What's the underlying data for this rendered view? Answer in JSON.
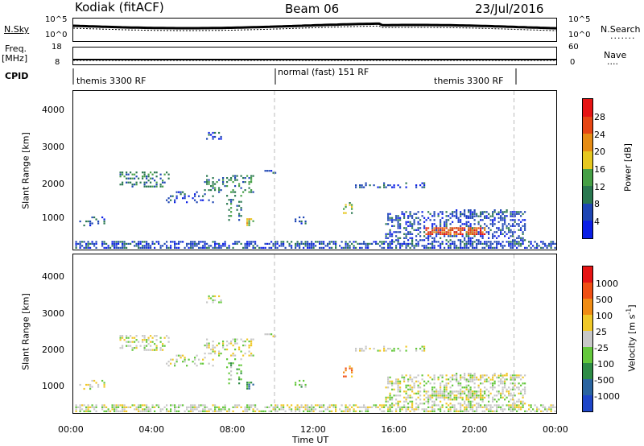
{
  "header": {
    "radar": "Kodiak (fitACF)",
    "beam": "Beam 06",
    "date": "23/Jul/2016"
  },
  "top_panels": {
    "nsky_label": "N.Sky",
    "nsky_ticks": [
      "10^5",
      "10^0"
    ],
    "nsearch_label": "N.Search",
    "nsearch_ticks": [
      "10^5",
      "10^0"
    ],
    "freq_label": "Freq.",
    "freq_unit": "[MHz]",
    "freq_ticks": [
      "18",
      "8"
    ],
    "nave_label": "Nave",
    "nave_ticks": [
      "60",
      "0"
    ],
    "cpid_label": "CPID",
    "cpid_segments": [
      {
        "label": "themis 3300 RF"
      },
      {
        "label": "normal (fast) 151 RF"
      },
      {
        "label": "themis 3300 RF"
      }
    ]
  },
  "chart_data": [
    {
      "type": "heatmap",
      "name": "power",
      "ylabel": "Slant Range [km]",
      "xlabel": "",
      "y_ticks": [
        "1000",
        "2000",
        "3000",
        "4000"
      ],
      "ylim": [
        180,
        4590
      ],
      "xlim": [
        0,
        24
      ],
      "colorbar": {
        "label": "Power [dB]",
        "ticks": [
          "4",
          "8",
          "12",
          "16",
          "20",
          "24",
          "28"
        ],
        "colors": [
          "#0a1ee6",
          "#1e46b4",
          "#2a7850",
          "#46a046",
          "#e6c820",
          "#e68c14",
          "#e64614",
          "#e61414"
        ]
      }
    },
    {
      "type": "heatmap",
      "name": "velocity",
      "ylabel": "Slant Range [km]",
      "xlabel": "Time UT",
      "y_ticks": [
        "1000",
        "2000",
        "3000",
        "4000"
      ],
      "x_ticks": [
        "00:00",
        "04:00",
        "08:00",
        "12:00",
        "16:00",
        "20:00",
        "00:00"
      ],
      "ylim": [
        180,
        4590
      ],
      "xlim": [
        0,
        24
      ],
      "colorbar": {
        "label": "Velocity [m s",
        "label_sup": "-1",
        "label_end": "]",
        "ticks": [
          "1000",
          "500",
          "100",
          "25",
          "-25",
          "-100",
          "-500",
          "-1000"
        ],
        "colors": [
          "#1e46c8",
          "#2a64a0",
          "#2e8c46",
          "#64c83c",
          "#c8c8c8",
          "#f0c828",
          "#f08c14",
          "#f05014",
          "#e61414"
        ]
      }
    }
  ]
}
